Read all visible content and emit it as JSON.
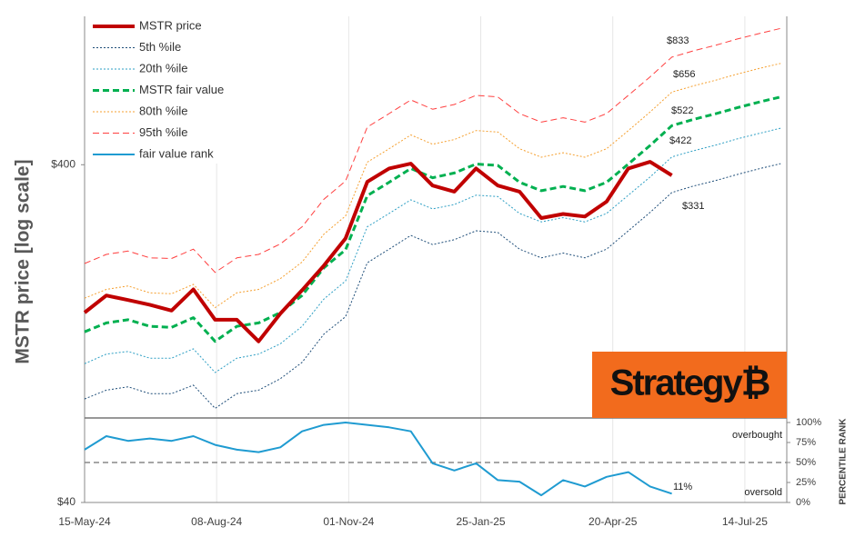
{
  "chart_data": {
    "type": "line",
    "y_label": "MSTR price [log scale]",
    "y2_label": "PERCENTILE RANK",
    "log_scale": true,
    "grid": true,
    "legend": "top-left",
    "logo": "Strategy₿",
    "x": [
      "2024-05-15",
      "2024-05-29",
      "2024-06-12",
      "2024-06-26",
      "2024-07-10",
      "2024-07-24",
      "2024-08-07",
      "2024-08-21",
      "2024-09-04",
      "2024-09-18",
      "2024-10-02",
      "2024-10-16",
      "2024-10-30",
      "2024-11-13",
      "2024-11-27",
      "2024-12-11",
      "2024-12-25",
      "2025-01-08",
      "2025-01-22",
      "2025-02-05",
      "2025-02-19",
      "2025-03-05",
      "2025-03-19",
      "2025-04-02",
      "2025-04-16",
      "2025-04-30",
      "2025-05-14",
      "2025-05-28",
      "2025-06-11",
      "2025-06-25",
      "2025-07-09",
      "2025-07-23",
      "2025-08-06"
    ],
    "xlim": [
      "2024-05-15",
      "2025-08-10"
    ],
    "xticks": [
      {
        "value": "2024-05-15",
        "label": "15-May-24"
      },
      {
        "value": "2024-08-08",
        "label": "08-Aug-24"
      },
      {
        "value": "2024-11-01",
        "label": "01-Nov-24"
      },
      {
        "value": "2025-01-25",
        "label": "25-Jan-25"
      },
      {
        "value": "2025-04-20",
        "label": "20-Apr-25"
      },
      {
        "value": "2025-07-14",
        "label": "14-Jul-25"
      }
    ],
    "ylim": [
      40,
      1100
    ],
    "yticks": [
      {
        "value": 400,
        "label": "$400"
      },
      {
        "value": 40,
        "label": "$40"
      }
    ],
    "y2lim": [
      0,
      100
    ],
    "y2ticks": [
      {
        "value": 0,
        "label": "0%"
      },
      {
        "value": 25,
        "label": "25%"
      },
      {
        "value": 50,
        "label": "50%"
      },
      {
        "value": 75,
        "label": "75%"
      },
      {
        "value": 100,
        "label": "100%"
      }
    ],
    "rank_reference": 50,
    "series": [
      {
        "name": "MSTR price",
        "color": "#c00000",
        "style": "solid",
        "width": 4,
        "values": [
          146,
          164,
          159,
          154,
          148,
          171,
          139,
          139,
          120,
          145,
          170,
          201,
          242,
          356,
          390,
          403,
          347,
          333,
          390,
          347,
          333,
          278,
          286,
          281,
          311,
          390,
          408,
          372,
          null,
          null,
          null,
          null,
          null
        ]
      },
      {
        "name": "5th %ile",
        "color": "#1f4e79",
        "style": "dotted",
        "width": 1,
        "values": [
          81,
          86,
          88,
          84,
          84,
          89,
          76,
          84,
          86,
          93,
          104,
          126,
          142,
          205,
          225,
          247,
          232,
          240,
          255,
          252,
          225,
          212,
          219,
          212,
          225,
          255,
          289,
          331,
          346,
          359,
          374,
          389,
          403
        ]
      },
      {
        "name": "20th %ile",
        "color": "#2e9fc4",
        "style": "dotted",
        "width": 1,
        "values": [
          103,
          110,
          112,
          107,
          107,
          114,
          97,
          107,
          110,
          118,
          133,
          160,
          181,
          262,
          287,
          315,
          296,
          305,
          325,
          322,
          287,
          271,
          279,
          271,
          287,
          325,
          368,
          422,
          440,
          457,
          477,
          495,
          513
        ]
      },
      {
        "name": "MSTR fair value",
        "color": "#00b050",
        "style": "dashed",
        "width": 3,
        "values": [
          128,
          136,
          139,
          133,
          132,
          141,
          120,
          133,
          136,
          146,
          164,
          198,
          224,
          324,
          355,
          390,
          366,
          378,
          402,
          398,
          355,
          335,
          345,
          335,
          355,
          402,
          456,
          522,
          545,
          566,
          590,
          613,
          635
        ]
      },
      {
        "name": "80th %ile",
        "color": "#f5a030",
        "style": "dotted",
        "width": 1,
        "values": [
          161,
          171,
          175,
          167,
          166,
          177,
          151,
          167,
          171,
          184,
          206,
          249,
          282,
          407,
          446,
          490,
          460,
          475,
          505,
          500,
          446,
          421,
          434,
          421,
          446,
          505,
          573,
          656,
          685,
          711,
          742,
          771,
          798
        ]
      },
      {
        "name": "95th %ile",
        "color": "#ff4040",
        "style": "dashed",
        "width": 1,
        "values": [
          204,
          217,
          222,
          212,
          211,
          225,
          192,
          212,
          217,
          233,
          262,
          316,
          358,
          517,
          567,
          622,
          584,
          603,
          642,
          635,
          567,
          535,
          551,
          535,
          567,
          642,
          728,
          833,
          870,
          903,
          942,
          978,
          1013
        ]
      },
      {
        "name": "fair value rank",
        "color": "#1f9bd1",
        "style": "solid",
        "width": 2,
        "axis": "y2",
        "values": [
          66,
          83,
          77,
          80,
          77,
          83,
          72,
          66,
          63,
          69,
          89,
          97,
          100,
          97,
          94,
          89,
          49,
          40,
          49,
          28,
          26,
          9,
          28,
          20,
          32,
          38,
          20,
          11,
          null,
          null,
          null,
          null,
          null
        ]
      }
    ],
    "annotations": [
      "$833",
      "$656",
      "$522",
      "$422",
      "$331",
      "11%",
      "overbought",
      "oversold"
    ]
  }
}
